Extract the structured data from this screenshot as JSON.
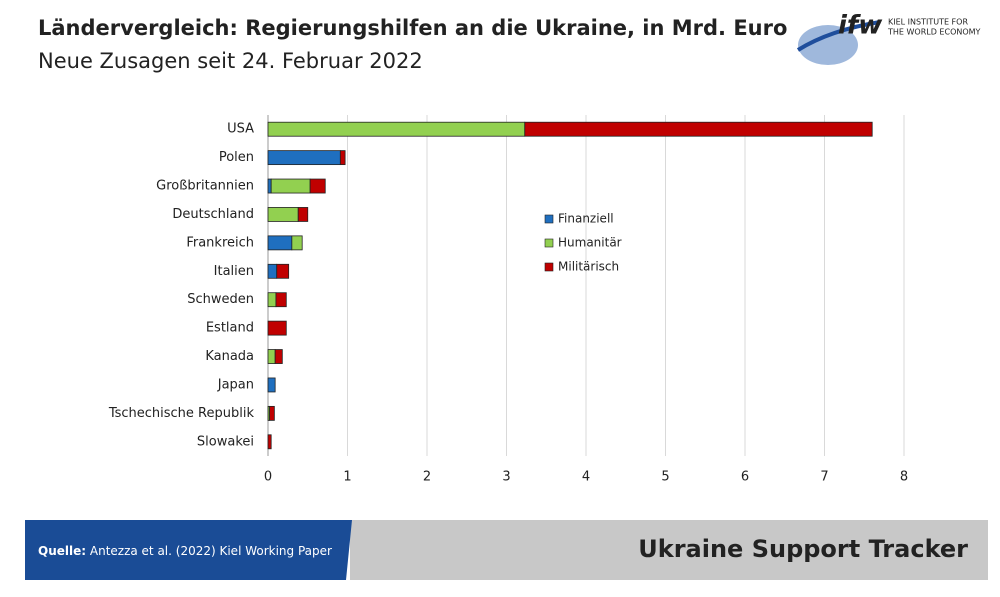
{
  "chart_data": {
    "type": "bar",
    "orientation": "horizontal",
    "stacked": true,
    "title": "Ländervergleich: Regierungshilfen an die Ukraine, in Mrd. Euro",
    "subtitle": "Neue Zusagen seit 24. Februar 2022",
    "categories": [
      "USA",
      "Polen",
      "Großbritannien",
      "Deutschland",
      "Frankreich",
      "Italien",
      "Schweden",
      "Estland",
      "Kanada",
      "Japan",
      "Tschechische Republik",
      "Slowakei"
    ],
    "series": [
      {
        "name": "Finanziell",
        "color": "#1f6fbf",
        "values": [
          0,
          0.91,
          0.04,
          0,
          0.3,
          0.11,
          0,
          0,
          0,
          0.09,
          0,
          0
        ]
      },
      {
        "name": "Humanitär",
        "color": "#92d050",
        "values": [
          3.23,
          0,
          0.49,
          0.38,
          0.13,
          0,
          0.1,
          0,
          0.09,
          0,
          0.02,
          0
        ]
      },
      {
        "name": "Militärisch",
        "color": "#c00000",
        "values": [
          4.37,
          0.06,
          0.19,
          0.12,
          0,
          0.15,
          0.13,
          0.23,
          0.09,
          0,
          0.06,
          0.04
        ]
      }
    ],
    "xlim": [
      0,
      8
    ],
    "xticks": [
      0,
      1,
      2,
      3,
      4,
      5,
      6,
      7,
      8
    ],
    "grid": true,
    "legend": "center"
  },
  "logo": {
    "mark": "ifw",
    "line1": "KIEL INSTITUTE FOR",
    "line2": "THE WORLD ECONOMY"
  },
  "footer": {
    "source_label": "Quelle:",
    "source_text": "Antezza et al. (2022) Kiel Working Paper",
    "brand": "Ukraine Support Tracker"
  }
}
